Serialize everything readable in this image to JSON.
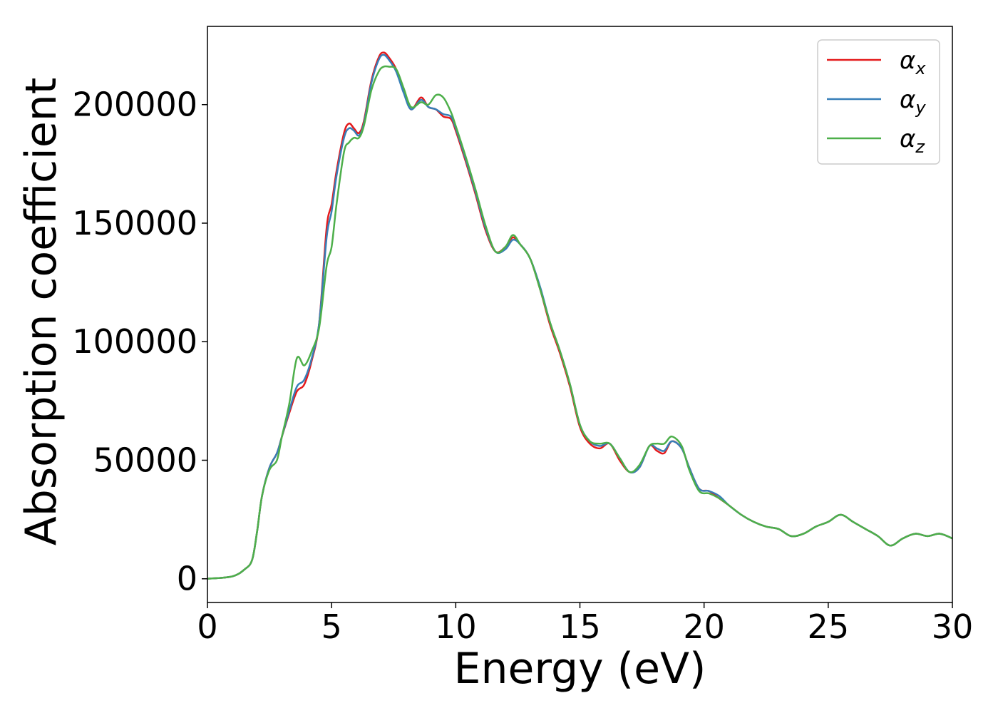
{
  "chart_data": {
    "type": "line",
    "title": "",
    "xlabel": "Energy (eV)",
    "ylabel": "Absorption coefficient",
    "xlim": [
      0,
      30
    ],
    "ylim": [
      -10000,
      233000
    ],
    "xticks": [
      0,
      5,
      10,
      15,
      20,
      25,
      30
    ],
    "yticks": [
      0,
      50000,
      100000,
      150000,
      200000
    ],
    "xtick_labels": [
      "0",
      "5",
      "10",
      "15",
      "20",
      "25",
      "30"
    ],
    "ytick_labels": [
      "0",
      "50000",
      "100000",
      "150000",
      "200000"
    ],
    "grid": false,
    "legend_position": "top-right",
    "series": [
      {
        "name": "α",
        "subscript": "x",
        "color": "#e41a1c",
        "points": [
          [
            0,
            0
          ],
          [
            1,
            1000
          ],
          [
            1.5,
            4000
          ],
          [
            1.8,
            8000
          ],
          [
            2,
            20000
          ],
          [
            2.2,
            35000
          ],
          [
            2.5,
            47000
          ],
          [
            2.8,
            53000
          ],
          [
            3,
            60000
          ],
          [
            3.3,
            70000
          ],
          [
            3.6,
            79000
          ],
          [
            3.9,
            82000
          ],
          [
            4.2,
            92000
          ],
          [
            4.5,
            108000
          ],
          [
            4.8,
            148000
          ],
          [
            5.0,
            158000
          ],
          [
            5.2,
            172000
          ],
          [
            5.5,
            188000
          ],
          [
            5.7,
            192000
          ],
          [
            5.9,
            190000
          ],
          [
            6.1,
            188000
          ],
          [
            6.3,
            193000
          ],
          [
            6.6,
            210000
          ],
          [
            6.9,
            220000
          ],
          [
            7.1,
            222000
          ],
          [
            7.3,
            220000
          ],
          [
            7.6,
            215000
          ],
          [
            7.9,
            206000
          ],
          [
            8.2,
            198000
          ],
          [
            8.6,
            203000
          ],
          [
            8.9,
            199000
          ],
          [
            9.2,
            198000
          ],
          [
            9.5,
            195000
          ],
          [
            9.8,
            194000
          ],
          [
            10.0,
            189000
          ],
          [
            10.4,
            176000
          ],
          [
            10.8,
            162000
          ],
          [
            11.2,
            147000
          ],
          [
            11.6,
            138000
          ],
          [
            12.0,
            140000
          ],
          [
            12.3,
            144000
          ],
          [
            12.6,
            141000
          ],
          [
            13.0,
            135000
          ],
          [
            13.4,
            122000
          ],
          [
            13.8,
            107000
          ],
          [
            14.2,
            95000
          ],
          [
            14.6,
            81000
          ],
          [
            15.0,
            64000
          ],
          [
            15.4,
            57000
          ],
          [
            15.8,
            55000
          ],
          [
            16.2,
            57000
          ],
          [
            16.6,
            50000
          ],
          [
            17.0,
            45000
          ],
          [
            17.4,
            47000
          ],
          [
            17.8,
            56000
          ],
          [
            18.1,
            54000
          ],
          [
            18.4,
            53000
          ],
          [
            18.7,
            58000
          ],
          [
            19.1,
            55000
          ],
          [
            19.4,
            47000
          ],
          [
            19.8,
            38000
          ],
          [
            20.2,
            37000
          ],
          [
            20.6,
            34000
          ],
          [
            21.0,
            31000
          ],
          [
            21.5,
            27000
          ],
          [
            22.0,
            24000
          ],
          [
            22.5,
            22000
          ],
          [
            23.0,
            21000
          ],
          [
            23.5,
            18000
          ],
          [
            24.0,
            19000
          ],
          [
            24.5,
            22000
          ],
          [
            25.0,
            24000
          ],
          [
            25.5,
            27000
          ],
          [
            26.0,
            24000
          ],
          [
            26.5,
            21000
          ],
          [
            27.0,
            18000
          ],
          [
            27.5,
            14000
          ],
          [
            28.0,
            17000
          ],
          [
            28.5,
            19000
          ],
          [
            29.0,
            18000
          ],
          [
            29.5,
            19000
          ],
          [
            30.0,
            17000
          ]
        ]
      },
      {
        "name": "α",
        "subscript": "y",
        "color": "#377eb8",
        "points": [
          [
            0,
            0
          ],
          [
            1,
            1000
          ],
          [
            1.5,
            4000
          ],
          [
            1.8,
            8000
          ],
          [
            2,
            20000
          ],
          [
            2.2,
            35000
          ],
          [
            2.5,
            47000
          ],
          [
            2.8,
            53000
          ],
          [
            3,
            60000
          ],
          [
            3.3,
            71000
          ],
          [
            3.6,
            81000
          ],
          [
            3.9,
            84000
          ],
          [
            4.2,
            93000
          ],
          [
            4.5,
            108000
          ],
          [
            4.8,
            144000
          ],
          [
            5.0,
            155000
          ],
          [
            5.2,
            170000
          ],
          [
            5.5,
            186000
          ],
          [
            5.7,
            190000
          ],
          [
            5.9,
            189000
          ],
          [
            6.1,
            187000
          ],
          [
            6.3,
            192000
          ],
          [
            6.6,
            209000
          ],
          [
            6.9,
            219000
          ],
          [
            7.1,
            221000
          ],
          [
            7.3,
            219000
          ],
          [
            7.6,
            214000
          ],
          [
            7.9,
            205000
          ],
          [
            8.2,
            198000
          ],
          [
            8.6,
            202000
          ],
          [
            8.9,
            199000
          ],
          [
            9.2,
            198000
          ],
          [
            9.5,
            196000
          ],
          [
            9.8,
            195000
          ],
          [
            10.0,
            190000
          ],
          [
            10.4,
            177000
          ],
          [
            10.8,
            163000
          ],
          [
            11.2,
            148000
          ],
          [
            11.6,
            138000
          ],
          [
            12.0,
            139000
          ],
          [
            12.3,
            143000
          ],
          [
            12.6,
            141000
          ],
          [
            13.0,
            135000
          ],
          [
            13.4,
            123000
          ],
          [
            13.8,
            108000
          ],
          [
            14.2,
            96000
          ],
          [
            14.6,
            82000
          ],
          [
            15.0,
            65000
          ],
          [
            15.4,
            58000
          ],
          [
            15.8,
            56000
          ],
          [
            16.2,
            57000
          ],
          [
            16.6,
            51000
          ],
          [
            17.0,
            45000
          ],
          [
            17.4,
            47000
          ],
          [
            17.8,
            56000
          ],
          [
            18.1,
            55000
          ],
          [
            18.4,
            54000
          ],
          [
            18.7,
            58000
          ],
          [
            19.1,
            55000
          ],
          [
            19.4,
            47000
          ],
          [
            19.8,
            38000
          ],
          [
            20.2,
            37000
          ],
          [
            20.6,
            35000
          ],
          [
            21.0,
            31000
          ],
          [
            21.5,
            27000
          ],
          [
            22.0,
            24000
          ],
          [
            22.5,
            22000
          ],
          [
            23.0,
            21000
          ],
          [
            23.5,
            18000
          ],
          [
            24.0,
            19000
          ],
          [
            24.5,
            22000
          ],
          [
            25.0,
            24000
          ],
          [
            25.5,
            27000
          ],
          [
            26.0,
            24000
          ],
          [
            26.5,
            21000
          ],
          [
            27.0,
            18000
          ],
          [
            27.5,
            14000
          ],
          [
            28.0,
            17000
          ],
          [
            28.5,
            19000
          ],
          [
            29.0,
            18000
          ],
          [
            29.5,
            19000
          ],
          [
            30.0,
            17000
          ]
        ]
      },
      {
        "name": "α",
        "subscript": "z",
        "color": "#4daf4a",
        "points": [
          [
            0,
            0
          ],
          [
            1,
            1000
          ],
          [
            1.5,
            4000
          ],
          [
            1.8,
            8000
          ],
          [
            2,
            20000
          ],
          [
            2.2,
            35000
          ],
          [
            2.5,
            46000
          ],
          [
            2.8,
            50000
          ],
          [
            3,
            60000
          ],
          [
            3.3,
            74000
          ],
          [
            3.6,
            93000
          ],
          [
            3.9,
            90000
          ],
          [
            4.2,
            96000
          ],
          [
            4.5,
            106000
          ],
          [
            4.8,
            132000
          ],
          [
            5.0,
            140000
          ],
          [
            5.2,
            158000
          ],
          [
            5.5,
            180000
          ],
          [
            5.7,
            184000
          ],
          [
            5.9,
            186000
          ],
          [
            6.1,
            186000
          ],
          [
            6.3,
            191000
          ],
          [
            6.6,
            206000
          ],
          [
            6.9,
            214000
          ],
          [
            7.1,
            216000
          ],
          [
            7.3,
            216000
          ],
          [
            7.6,
            215000
          ],
          [
            7.9,
            207000
          ],
          [
            8.2,
            199000
          ],
          [
            8.6,
            201000
          ],
          [
            8.9,
            200000
          ],
          [
            9.2,
            204000
          ],
          [
            9.5,
            203000
          ],
          [
            9.8,
            197000
          ],
          [
            10.0,
            191000
          ],
          [
            10.4,
            178000
          ],
          [
            10.8,
            164000
          ],
          [
            11.2,
            149000
          ],
          [
            11.6,
            138000
          ],
          [
            12.0,
            140000
          ],
          [
            12.3,
            145000
          ],
          [
            12.6,
            141000
          ],
          [
            13.0,
            135000
          ],
          [
            13.4,
            122000
          ],
          [
            13.8,
            108000
          ],
          [
            14.2,
            96000
          ],
          [
            14.6,
            82000
          ],
          [
            15.0,
            65000
          ],
          [
            15.4,
            58000
          ],
          [
            15.8,
            57000
          ],
          [
            16.2,
            57000
          ],
          [
            16.6,
            51000
          ],
          [
            17.0,
            45000
          ],
          [
            17.4,
            48000
          ],
          [
            17.8,
            56000
          ],
          [
            18.1,
            57000
          ],
          [
            18.4,
            57000
          ],
          [
            18.7,
            60000
          ],
          [
            19.1,
            56000
          ],
          [
            19.4,
            46000
          ],
          [
            19.8,
            37000
          ],
          [
            20.2,
            36000
          ],
          [
            20.6,
            34000
          ],
          [
            21.0,
            31000
          ],
          [
            21.5,
            27000
          ],
          [
            22.0,
            24000
          ],
          [
            22.5,
            22000
          ],
          [
            23.0,
            21000
          ],
          [
            23.5,
            18000
          ],
          [
            24.0,
            19000
          ],
          [
            24.5,
            22000
          ],
          [
            25.0,
            24000
          ],
          [
            25.5,
            27000
          ],
          [
            26.0,
            24000
          ],
          [
            26.5,
            21000
          ],
          [
            27.0,
            18000
          ],
          [
            27.5,
            14000
          ],
          [
            28.0,
            17000
          ],
          [
            28.5,
            19000
          ],
          [
            29.0,
            18000
          ],
          [
            29.5,
            19000
          ],
          [
            30.0,
            17000
          ]
        ]
      }
    ]
  }
}
